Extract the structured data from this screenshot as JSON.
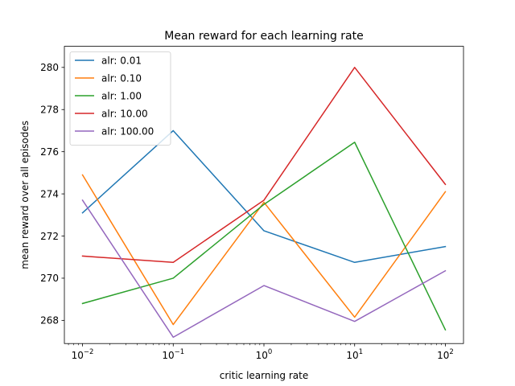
{
  "chart_data": {
    "type": "line",
    "title": "Mean reward for each learning rate",
    "xlabel": "critic learning rate",
    "ylabel": "mean reward over all episodes",
    "x_scale": "log",
    "x": [
      0.01,
      0.1,
      1,
      10,
      100
    ],
    "x_ticks": [
      {
        "base": "10",
        "exp": "−2"
      },
      {
        "base": "10",
        "exp": "−1"
      },
      {
        "base": "10",
        "exp": "0"
      },
      {
        "base": "10",
        "exp": "1"
      },
      {
        "base": "10",
        "exp": "2"
      }
    ],
    "y_ticks": [
      "268",
      "270",
      "272",
      "274",
      "276",
      "278",
      "280"
    ],
    "y_tick_values": [
      268,
      270,
      272,
      274,
      276,
      278,
      280
    ],
    "ylim": [
      266.9,
      281.0
    ],
    "grid": false,
    "legend_position": "upper-left",
    "series": [
      {
        "name": "alr: 0.01",
        "color": "#1f77b4",
        "values": [
          273.1,
          277.0,
          272.25,
          270.75,
          271.5
        ]
      },
      {
        "name": "alr: 0.10",
        "color": "#ff7f0e",
        "values": [
          274.9,
          267.8,
          273.6,
          268.15,
          274.1
        ]
      },
      {
        "name": "alr: 1.00",
        "color": "#2ca02c",
        "values": [
          268.8,
          270.0,
          273.5,
          276.45,
          267.55
        ]
      },
      {
        "name": "alr: 10.00",
        "color": "#d62728",
        "values": [
          271.05,
          270.75,
          273.7,
          280.0,
          274.45
        ]
      },
      {
        "name": "alr: 100.00",
        "color": "#9467bd",
        "values": [
          273.7,
          267.2,
          269.65,
          267.95,
          270.35
        ]
      }
    ]
  }
}
